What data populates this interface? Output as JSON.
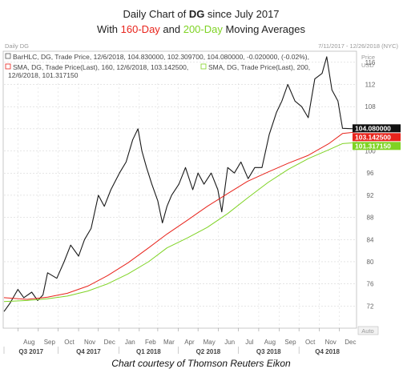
{
  "title": {
    "line1_prefix": "Daily Chart of ",
    "line1_ticker": "DG",
    "line1_suffix": " since July 2017",
    "line2_prefix": "With ",
    "line2_red": "160-Day",
    "line2_mid": " and ",
    "line2_green": "200-Day",
    "line2_suffix": " Moving Averages"
  },
  "header": {
    "left": "Daily DG",
    "right": "7/11/2017 - 12/26/2018 (NYC)",
    "price_label": "Price",
    "currency_label": "USD"
  },
  "legend": {
    "bar_text": "BarHLC, DG, Trade Price, 12/6/2018, 104.830000, 102.309700, 104.080000, -0.020000, (-0.02%),",
    "sma160_text": "SMA, DG, Trade Price(Last),  160,  12/6/2018, 103.142500,",
    "sma200_text": "SMA, DG, Trade Price(Last),  200,",
    "sma200_text2": "12/6/2018, 101.317150"
  },
  "price_tags": {
    "last": "104.080000",
    "sma160": "103.142500",
    "sma200": "101.317150"
  },
  "auto_label": "Auto",
  "caption": "Chart courtesy of Thomson Reuters Eikon",
  "colors": {
    "price": "#1a1a1a",
    "sma160": "#e8241c",
    "sma200": "#7fd324",
    "grid": "#cccccc",
    "tag_last_bg": "#111111",
    "tag_sma160_bg": "#e8241c",
    "tag_sma200_bg": "#7fd324"
  },
  "chart_data": {
    "type": "line",
    "ylim": [
      68,
      118
    ],
    "y_ticks": [
      72,
      76,
      80,
      84,
      88,
      92,
      96,
      100,
      104,
      108,
      112,
      116
    ],
    "month_labels": [
      "Aug",
      "Sep",
      "Oct",
      "Nov",
      "Dec",
      "Jan",
      "Feb",
      "Mar",
      "Apr",
      "May",
      "Jun",
      "Jul",
      "Aug",
      "Sep",
      "Oct",
      "Nov",
      "Dec"
    ],
    "quarter_labels": [
      "Q3 2017",
      "Q4 2017",
      "Q1 2018",
      "Q2 2018",
      "Q3 2018",
      "Q4 2018"
    ],
    "month_starts": [
      "2017-08-01",
      "2017-09-01",
      "2017-10-01",
      "2017-11-01",
      "2017-12-01",
      "2018-01-01",
      "2018-02-01",
      "2018-03-01",
      "2018-04-01",
      "2018-05-01",
      "2018-06-01",
      "2018-07-01",
      "2018-08-01",
      "2018-09-01",
      "2018-10-01",
      "2018-11-01",
      "2018-12-01"
    ],
    "quarter_starts": [
      "2017-07-01",
      "2017-10-01",
      "2018-01-01",
      "2018-04-01",
      "2018-07-01",
      "2018-10-01"
    ],
    "x_range": [
      "2017-07-11",
      "2018-12-26"
    ],
    "series": [
      {
        "name": "DG Trade Price",
        "x": [
          "2017-07-11",
          "2017-07-20",
          "2017-08-01",
          "2017-08-10",
          "2017-08-22",
          "2017-08-31",
          "2017-09-08",
          "2017-09-15",
          "2017-09-29",
          "2017-10-10",
          "2017-10-20",
          "2017-11-01",
          "2017-11-10",
          "2017-11-20",
          "2017-12-01",
          "2017-12-10",
          "2017-12-20",
          "2018-01-02",
          "2018-01-12",
          "2018-01-22",
          "2018-01-30",
          "2018-02-05",
          "2018-02-12",
          "2018-02-20",
          "2018-03-01",
          "2018-03-08",
          "2018-03-15",
          "2018-03-22",
          "2018-04-02",
          "2018-04-12",
          "2018-04-23",
          "2018-05-01",
          "2018-05-10",
          "2018-05-21",
          "2018-05-31",
          "2018-06-06",
          "2018-06-15",
          "2018-06-25",
          "2018-07-05",
          "2018-07-16",
          "2018-07-26",
          "2018-08-06",
          "2018-08-17",
          "2018-08-28",
          "2018-09-05",
          "2018-09-14",
          "2018-09-25",
          "2018-10-05",
          "2018-10-15",
          "2018-10-25",
          "2018-11-05",
          "2018-11-12",
          "2018-11-20",
          "2018-11-29",
          "2018-12-06",
          "2018-12-26"
        ],
        "y": [
          71,
          72.5,
          75,
          73.5,
          74.5,
          73,
          74,
          78,
          77,
          80,
          83,
          81,
          84,
          86,
          92,
          90,
          93,
          96,
          98,
          102,
          104,
          100,
          97,
          94,
          91,
          87,
          90,
          92,
          94,
          97,
          93,
          96,
          94,
          96,
          93,
          89,
          97,
          96,
          98,
          95,
          97,
          97,
          103,
          107,
          109,
          112,
          109,
          108,
          106,
          113,
          114,
          117,
          111,
          109,
          104.08,
          104
        ]
      },
      {
        "name": "SMA 160",
        "x": [
          "2017-07-11",
          "2017-08-15",
          "2017-09-15",
          "2017-10-15",
          "2017-11-15",
          "2017-12-15",
          "2018-01-15",
          "2018-02-15",
          "2018-03-15",
          "2018-04-15",
          "2018-05-15",
          "2018-06-15",
          "2018-07-15",
          "2018-08-15",
          "2018-09-15",
          "2018-10-15",
          "2018-11-15",
          "2018-12-06",
          "2018-12-26"
        ],
        "y": [
          73.5,
          73.2,
          73.6,
          74.3,
          75.6,
          77.5,
          79.8,
          82.5,
          85.0,
          87.5,
          90.0,
          92.3,
          94.5,
          96.2,
          97.8,
          99.2,
          101.3,
          103.1425,
          103.4
        ]
      },
      {
        "name": "SMA 200",
        "x": [
          "2017-07-11",
          "2017-08-15",
          "2017-09-15",
          "2017-10-15",
          "2017-11-15",
          "2017-12-15",
          "2018-01-15",
          "2018-02-15",
          "2018-03-15",
          "2018-04-15",
          "2018-05-15",
          "2018-06-15",
          "2018-07-15",
          "2018-08-15",
          "2018-09-15",
          "2018-10-15",
          "2018-11-15",
          "2018-12-06",
          "2018-12-26"
        ],
        "y": [
          72.8,
          73.0,
          73.3,
          73.8,
          74.7,
          76.0,
          77.8,
          80.0,
          82.5,
          84.3,
          86.2,
          88.7,
          91.5,
          94.3,
          96.7,
          98.6,
          100.2,
          101.31715,
          101.5
        ]
      }
    ]
  }
}
